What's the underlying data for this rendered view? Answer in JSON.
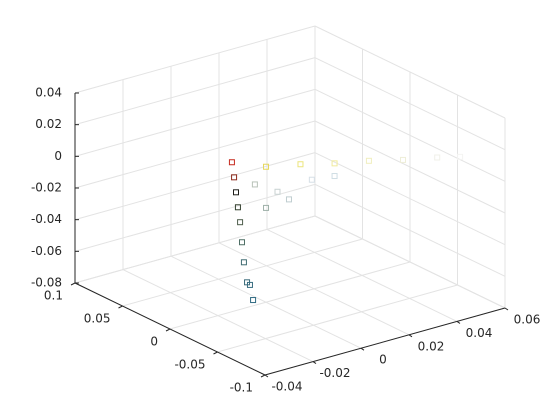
{
  "chart_data": {
    "type": "scatter3d",
    "marker": "square",
    "x": [
      -0.0142,
      -0.0133,
      -0.0125,
      -0.0117,
      -0.0108,
      -0.01,
      -0.0092,
      -0.0079,
      -0.0146,
      -0.0133,
      -0.0047,
      0.0049,
      0.0144,
      0.024,
      0.0335,
      0.043,
      0.0494,
      -0.0078,
      -0.0015,
      0.0081,
      -0.0047,
      0.0017,
      0.0144
    ],
    "y": [
      0,
      0,
      0,
      0,
      0,
      0,
      0,
      0,
      -0.02,
      -0.02,
      -0.0119,
      -0.0239,
      -0.0358,
      -0.0477,
      -0.0596,
      -0.0716,
      -0.0795,
      -0.008,
      -0.0159,
      -0.0278,
      -0.0119,
      -0.0199,
      -0.0358
    ],
    "z": [
      0.0144,
      0.0045,
      -0.0053,
      -0.0151,
      -0.0249,
      -0.0379,
      -0.0509,
      -0.0641,
      -0.0571,
      -0.0672,
      0.011,
      0.012,
      0.012,
      0.013,
      0.013,
      0.014,
      0.014,
      0.0,
      -0.005,
      0.002,
      -0.015,
      -0.01,
      0.004
    ],
    "colors": [
      "#c62a1e",
      "#8b2a1c",
      "#1e1e1a",
      "#34402f",
      "#4e5e4c",
      "#4f6f66",
      "#3f6c72",
      "#3a6a7a",
      "#386d80",
      "#2f6a82",
      "#e6d85a",
      "#ece57c",
      "#f0ea9c",
      "#f0eebe",
      "#eeeed8",
      "#f0f0ea",
      "#f4f4f2",
      "#b8c2b8",
      "#c8d2d2",
      "#d6e0e6",
      "#9eb0a8",
      "#bfcdd0",
      "#d0dde4"
    ],
    "xlim": [
      -0.04,
      0.06
    ],
    "xticks": [
      -0.04,
      -0.02,
      0,
      0.02,
      0.04,
      0.06
    ],
    "ylim": [
      -0.1,
      0.1
    ],
    "yticks": [
      -0.1,
      -0.05,
      0,
      0.05,
      0.1
    ],
    "zlim": [
      -0.08,
      0.04
    ],
    "zticks": [
      -0.08,
      -0.06,
      -0.04,
      -0.02,
      0,
      0.02,
      0.04
    ],
    "grid": true
  }
}
